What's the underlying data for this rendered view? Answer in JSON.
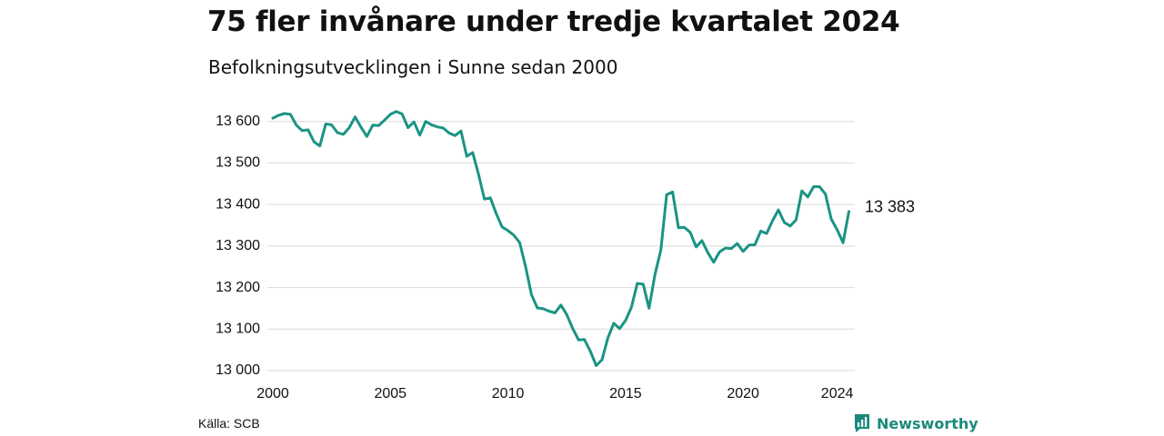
{
  "title": "75 fler invånare under tredje kvartalet 2024",
  "subtitle": "Befolkningsutvecklingen i Sunne sedan 2000",
  "source": "Källa: SCB",
  "brand": {
    "name": "Newsworthy",
    "icon": "newsworthy-logo-icon"
  },
  "colors": {
    "line": "#1a9484",
    "grid": "#d9d9d9",
    "brand": "#1a8a7b"
  },
  "chart_data": {
    "type": "line",
    "x_start": 2000,
    "x_step": 0.25,
    "xlim": [
      2000,
      2024.75
    ],
    "ylim": [
      13000,
      13630
    ],
    "x_ticks": [
      2000,
      2005,
      2010,
      2015,
      2020,
      2024
    ],
    "x_tick_labels": [
      "2000",
      "2005",
      "2010",
      "2015",
      "2020",
      "2024"
    ],
    "y_ticks": [
      13000,
      13100,
      13200,
      13300,
      13400,
      13500,
      13600
    ],
    "y_tick_labels": [
      "13 000",
      "13 100",
      "13 200",
      "13 300",
      "13 400",
      "13 500",
      "13 600"
    ],
    "grid": true,
    "end_label": "13 383",
    "values": [
      13608,
      13615,
      13619,
      13617,
      13591,
      13578,
      13580,
      13551,
      13541,
      13594,
      13592,
      13573,
      13569,
      13585,
      13611,
      13586,
      13564,
      13591,
      13590,
      13603,
      13617,
      13624,
      13618,
      13585,
      13599,
      13567,
      13600,
      13592,
      13587,
      13584,
      13572,
      13566,
      13577,
      13516,
      13525,
      13472,
      13413,
      13416,
      13378,
      13346,
      13337,
      13326,
      13308,
      13250,
      13183,
      13151,
      13149,
      13143,
      13139,
      13158,
      13135,
      13102,
      13074,
      13075,
      13047,
      13012,
      13026,
      13079,
      13114,
      13101,
      13121,
      13152,
      13210,
      13208,
      13150,
      13231,
      13290,
      13424,
      13430,
      13344,
      13345,
      13333,
      13298,
      13313,
      13284,
      13261,
      13286,
      13295,
      13294,
      13306,
      13287,
      13302,
      13303,
      13336,
      13330,
      13361,
      13387,
      13357,
      13348,
      13363,
      13433,
      13418,
      13443,
      13443,
      13425,
      13365,
      13339,
      13308,
      13383
    ]
  }
}
